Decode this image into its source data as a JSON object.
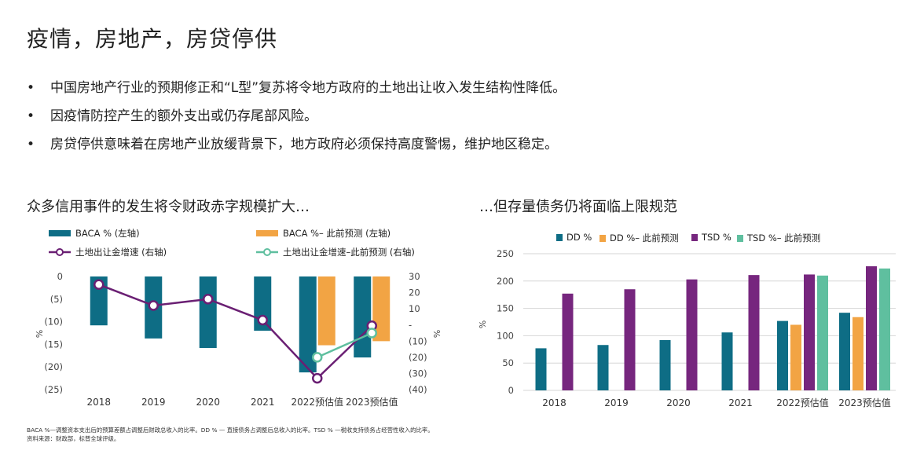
{
  "page": {
    "title": "疫情，房地产，房贷停供",
    "bullets": [
      "中国房地产行业的预期修正和“L型”复苏将令地方政府的土地出让收入发生结构性降低。",
      "因疫情防控产生的额外支出或仍存尾部风险。",
      "房贷停供意味着在房地产业放缓背景下，地方政府必须保持高度警惕，维护地区稳定。"
    ],
    "bullet_symbol": "•",
    "left_subtitle": "众多信用事件的发生将令财政赤字规模扩大…",
    "right_subtitle": "…但存量债务仍将面临上限规范",
    "footnote_lines": [
      "BACA %—调整资本支出后的预算差额占调整后财政总收入的比率。DD % — 直接债务占调整后总收入的比率。TSD % —税收支持债务占经营性收入的比率。",
      "资料来源：财政部，标普全球评级。"
    ]
  },
  "chart_data": [
    {
      "type": "bar",
      "categories": [
        "2018",
        "2019",
        "2020",
        "2021",
        "2022预估值",
        "2023预估值"
      ],
      "series": [
        {
          "name": "BACA % (左轴)",
          "kind": "bar",
          "axis": "left",
          "color": "#0e6d85",
          "values": [
            -10.8,
            -13.7,
            -15.8,
            -12,
            -21.2,
            -17.9
          ]
        },
        {
          "name": "BACA %– 此前预测 (左轴)",
          "kind": "bar",
          "axis": "left",
          "color": "#f2a444",
          "values": [
            null,
            null,
            null,
            null,
            -15.2,
            -14.3
          ]
        },
        {
          "name": "土地出让金增速 (右轴)",
          "kind": "line",
          "axis": "right",
          "color": "#6a1f73",
          "values": [
            25,
            12,
            16,
            3,
            -33,
            -0.5
          ]
        },
        {
          "name": "土地出让金增速–此前预测 (右轴)",
          "kind": "line",
          "axis": "right",
          "color": "#5fbf9f",
          "values": [
            null,
            null,
            null,
            null,
            -20,
            -5
          ]
        }
      ],
      "left_axis": {
        "label": "%",
        "ylim": [
          -25,
          0
        ],
        "ticks": [
          "0",
          "(5)",
          "(10)",
          "(15)",
          "(20)",
          "(25)"
        ]
      },
      "right_axis": {
        "label": "%",
        "ylim": [
          -40,
          30
        ],
        "ticks": [
          "30",
          "20",
          "10",
          "-",
          "(10)",
          "(20)",
          "(30)",
          "(40)"
        ]
      },
      "legend_placement": "top"
    },
    {
      "type": "bar",
      "categories": [
        "2018",
        "2019",
        "2020",
        "2021",
        "2022预估值",
        "2023预估值"
      ],
      "series": [
        {
          "name": "DD %",
          "color": "#0e6d85",
          "values": [
            77,
            83,
            92,
            106,
            127,
            142
          ]
        },
        {
          "name": "DD %– 此前预测",
          "color": "#f2a444",
          "values": [
            null,
            null,
            null,
            null,
            120,
            134
          ]
        },
        {
          "name": "TSD %",
          "color": "#76267e",
          "values": [
            177,
            185,
            203,
            211,
            212,
            227
          ]
        },
        {
          "name": "TSD %– 此前预测",
          "color": "#5fbf9f",
          "values": [
            null,
            null,
            null,
            null,
            210,
            223
          ]
        }
      ],
      "y_axis": {
        "label": "%",
        "ylim": [
          0,
          250
        ],
        "ticks": [
          "0",
          "50",
          "100",
          "150",
          "200",
          "250"
        ]
      },
      "grid": true,
      "legend_placement": "top"
    }
  ]
}
